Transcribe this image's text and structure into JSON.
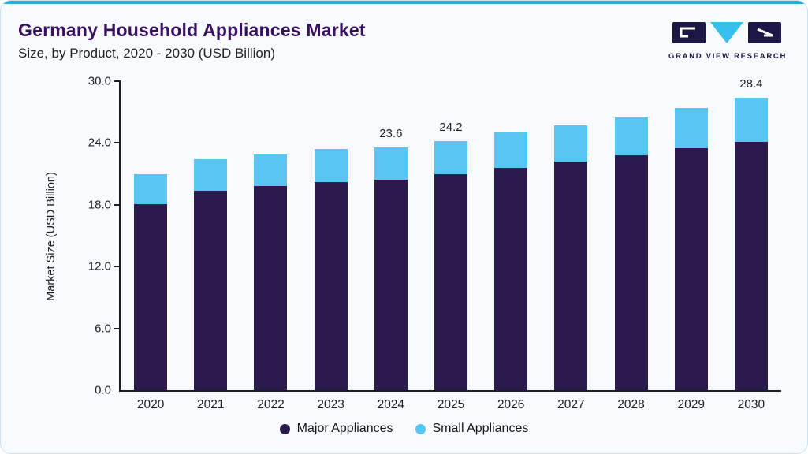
{
  "header": {
    "title": "Germany Household Appliances Market",
    "subtitle": "Size, by Product, 2020 - 2030 (USD Billion)"
  },
  "logo": {
    "text": "GRAND VIEW RESEARCH"
  },
  "colors": {
    "accent_top": "#29aae1",
    "major_appliances": "#2b1b4c",
    "small_appliances": "#57c6f2",
    "title": "#38105f",
    "axis": "#1b1b26",
    "background": "#f7fbfe",
    "card_border": "#c9e3f2"
  },
  "chart_data": {
    "type": "bar",
    "stacked": true,
    "title": "Germany Household Appliances Market Size, by Product, 2020 - 2030 (USD Billion)",
    "categories": [
      "2020",
      "2021",
      "2022",
      "2023",
      "2024",
      "2025",
      "2026",
      "2027",
      "2028",
      "2029",
      "2030"
    ],
    "series": [
      {
        "name": "Major Appliances",
        "color": "#2b1b4c",
        "values": [
          18.1,
          19.4,
          19.8,
          20.2,
          20.4,
          21.0,
          21.6,
          22.2,
          22.8,
          23.5,
          24.1
        ]
      },
      {
        "name": "Small Appliances",
        "color": "#57c6f2",
        "values": [
          2.9,
          3.0,
          3.1,
          3.2,
          3.2,
          3.2,
          3.4,
          3.5,
          3.7,
          3.9,
          4.3
        ]
      }
    ],
    "totals": [
      21.0,
      22.4,
      22.9,
      23.4,
      23.6,
      24.2,
      25.0,
      25.7,
      26.5,
      27.4,
      28.4
    ],
    "total_labels": [
      "",
      "",
      "",
      "",
      "23.6",
      "24.2",
      "",
      "",
      "",
      "",
      "28.4"
    ],
    "xlabel": "",
    "ylabel": "Market Size (USD Billion)",
    "ylim": [
      0,
      30
    ],
    "yticks": [
      0.0,
      6.0,
      12.0,
      18.0,
      24.0,
      30.0
    ],
    "ytick_labels": [
      "0.0",
      "6.0",
      "12.0",
      "18.0",
      "24.0",
      "30.0"
    ],
    "grid": false,
    "legend_position": "bottom"
  },
  "legend": {
    "items": [
      {
        "label": "Major Appliances",
        "color": "#2b1b4c"
      },
      {
        "label": "Small Appliances",
        "color": "#57c6f2"
      }
    ]
  }
}
